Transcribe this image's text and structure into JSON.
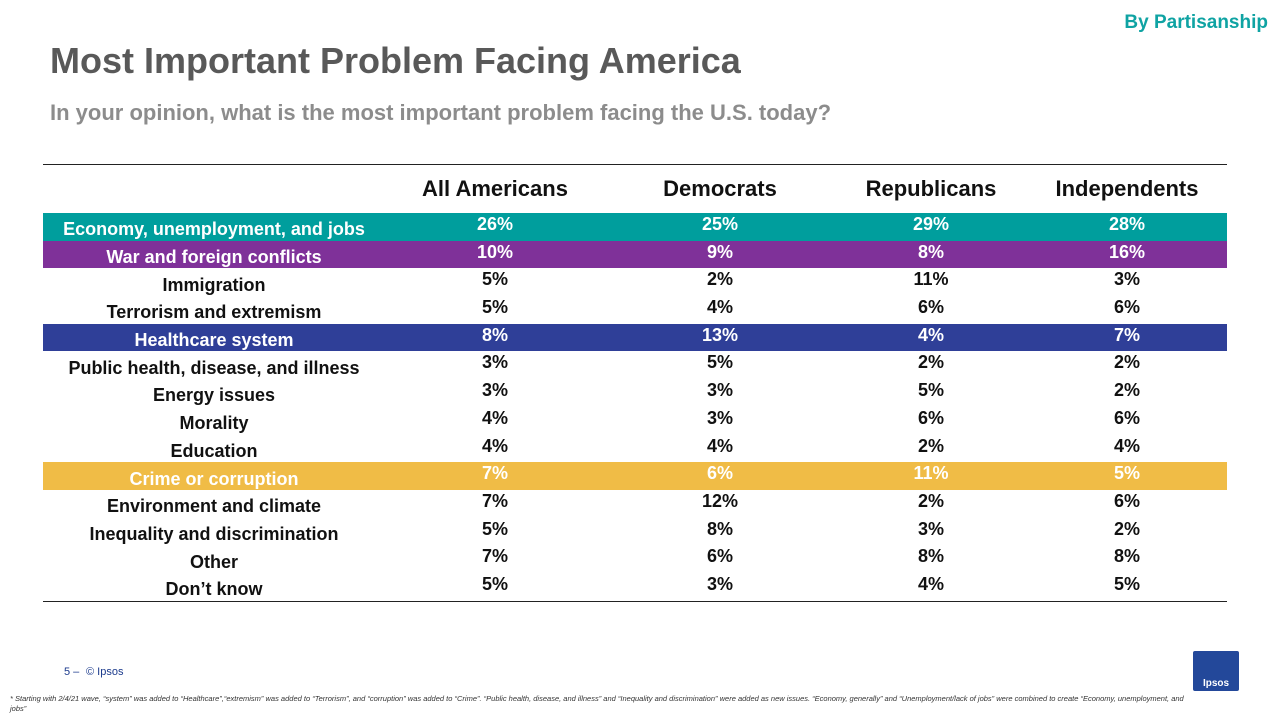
{
  "header": {
    "tag": "By Partisanship",
    "title": "Most Important Problem Facing America",
    "subtitle": "In your opinion, what is the most important problem facing the U.S. today?"
  },
  "table": {
    "columns": [
      "All Americans",
      "Democrats",
      "Republicans",
      "Independents"
    ],
    "rows": [
      {
        "label": "Economy, unemployment, and jobs",
        "values": [
          "26%",
          "25%",
          "29%",
          "28%"
        ],
        "color": "#009e9d"
      },
      {
        "label": "War and foreign conflicts",
        "values": [
          "10%",
          "9%",
          "8%",
          "16%"
        ],
        "color": "#7f3199"
      },
      {
        "label": "Immigration",
        "values": [
          "5%",
          "2%",
          "11%",
          "3%"
        ]
      },
      {
        "label": "Terrorism and extremism",
        "values": [
          "5%",
          "4%",
          "6%",
          "6%"
        ]
      },
      {
        "label": "Healthcare system",
        "values": [
          "8%",
          "13%",
          "4%",
          "7%"
        ],
        "color": "#2f3f98"
      },
      {
        "label": "Public health, disease, and illness",
        "values": [
          "3%",
          "5%",
          "2%",
          "2%"
        ]
      },
      {
        "label": "Energy issues",
        "values": [
          "3%",
          "3%",
          "5%",
          "2%"
        ]
      },
      {
        "label": "Morality",
        "values": [
          "4%",
          "3%",
          "6%",
          "6%"
        ]
      },
      {
        "label": "Education",
        "values": [
          "4%",
          "4%",
          "2%",
          "4%"
        ]
      },
      {
        "label": "Crime or corruption",
        "values": [
          "7%",
          "6%",
          "11%",
          "5%"
        ],
        "color": "#f0bc46"
      },
      {
        "label": "Environment and climate",
        "values": [
          "7%",
          "12%",
          "2%",
          "6%"
        ]
      },
      {
        "label": "Inequality and discrimination",
        "values": [
          "5%",
          "8%",
          "3%",
          "2%"
        ]
      },
      {
        "label": "Other",
        "values": [
          "7%",
          "6%",
          "8%",
          "8%"
        ]
      },
      {
        "label": "Don’t know",
        "values": [
          "5%",
          "3%",
          "4%",
          "5%"
        ]
      }
    ]
  },
  "footer": {
    "page": "5 –",
    "copyright": "© Ipsos",
    "note": "* Starting with 2/4/21 wave, “system” was added to “Healthcare”,“extremism” was added to “Terrorism”, and “corruption” was added to “Crime”. “Public health, disease, and illness” and “Inequality and discrimination” were added as new issues. “Economy, generally” and “Unemployment/lack of jobs” were combined to create “Economy, unemployment, and jobs”",
    "logo": "Ipsos"
  }
}
